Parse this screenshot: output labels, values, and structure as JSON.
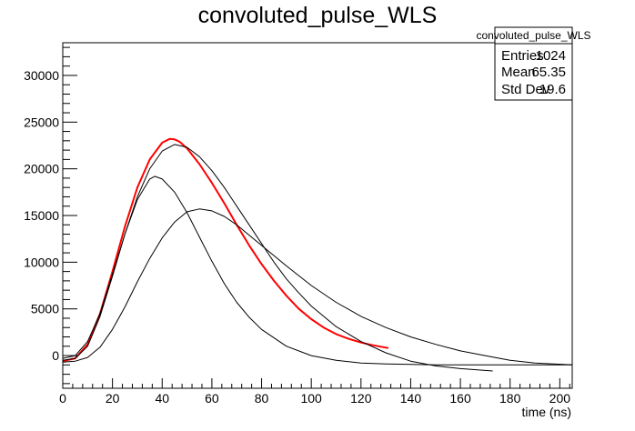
{
  "chart_data": {
    "type": "line",
    "title": "convoluted_pulse_WLS",
    "xlabel": "time (ns)",
    "ylabel": "",
    "xlim": [
      0,
      205
    ],
    "ylim": [
      -3500,
      33500
    ],
    "x_ticks": [
      0,
      20,
      40,
      60,
      80,
      100,
      120,
      140,
      160,
      180,
      200
    ],
    "y_ticks": [
      0,
      5000,
      10000,
      15000,
      20000,
      25000,
      30000
    ],
    "grid": false,
    "legend": "none",
    "stats_box": {
      "title": "convoluted_pulse_WLS",
      "rows": [
        {
          "label": "Entries",
          "value": "1024"
        },
        {
          "label": "Mean",
          "value": "65.35"
        },
        {
          "label": "Std Dev",
          "value": "19.6"
        }
      ]
    },
    "series": [
      {
        "color": "#ff0000",
        "x": [
          0,
          5,
          10,
          15,
          20,
          25,
          30,
          35,
          40,
          43,
          45,
          47,
          50,
          55,
          60,
          65,
          70,
          75,
          80,
          85,
          90,
          95,
          100,
          105,
          110,
          115,
          120,
          125,
          131
        ],
        "y": [
          -600,
          -300,
          1200,
          4500,
          9000,
          13800,
          18000,
          21000,
          22800,
          23200,
          23150,
          22900,
          22200,
          20500,
          18500,
          16300,
          14000,
          11800,
          9800,
          8000,
          6400,
          5000,
          3900,
          3000,
          2300,
          1800,
          1400,
          1100,
          800
        ]
      },
      {
        "color": "#000000",
        "x": [
          0,
          5,
          10,
          15,
          20,
          25,
          30,
          35,
          40,
          45,
          50,
          55,
          60,
          65,
          70,
          75,
          80,
          85,
          90,
          95,
          100,
          110,
          120,
          130,
          140,
          150,
          160,
          173
        ],
        "y": [
          -500,
          -300,
          1000,
          4200,
          8500,
          13000,
          17000,
          20000,
          21900,
          22600,
          22300,
          21300,
          19800,
          18000,
          16000,
          14000,
          12000,
          10000,
          8200,
          6700,
          5300,
          3100,
          1500,
          300,
          -600,
          -1100,
          -1400,
          -1650
        ]
      },
      {
        "color": "#000000",
        "x": [
          0,
          5,
          10,
          15,
          20,
          25,
          30,
          35,
          37,
          40,
          45,
          50,
          55,
          60,
          65,
          70,
          75,
          80,
          90,
          100,
          110,
          120,
          130,
          140,
          150,
          205
        ],
        "y": [
          -300,
          0,
          1500,
          4500,
          8700,
          13000,
          16700,
          18900,
          19200,
          18900,
          17500,
          15300,
          12700,
          10100,
          7700,
          5700,
          4100,
          2800,
          1000,
          0,
          -500,
          -800,
          -900,
          -950,
          -1000,
          -1000
        ]
      },
      {
        "color": "#000000",
        "x": [
          0,
          5,
          10,
          15,
          20,
          25,
          30,
          35,
          40,
          45,
          50,
          55,
          60,
          65,
          70,
          80,
          90,
          100,
          110,
          120,
          130,
          140,
          150,
          160,
          170,
          180,
          190,
          205
        ],
        "y": [
          -700,
          -600,
          -200,
          900,
          2800,
          5200,
          7900,
          10400,
          12600,
          14300,
          15400,
          15700,
          15500,
          14900,
          14000,
          11800,
          9600,
          7500,
          5700,
          4200,
          3000,
          2000,
          1200,
          500,
          0,
          -500,
          -800,
          -1000
        ]
      }
    ]
  }
}
